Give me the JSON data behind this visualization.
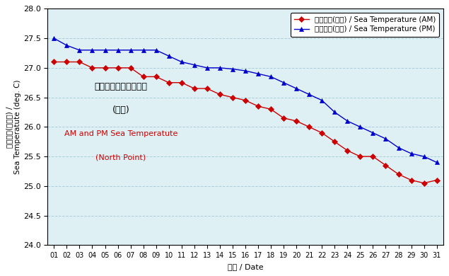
{
  "days": [
    1,
    2,
    3,
    4,
    5,
    6,
    7,
    8,
    9,
    10,
    11,
    12,
    13,
    14,
    15,
    16,
    17,
    18,
    19,
    20,
    21,
    22,
    23,
    24,
    25,
    26,
    27,
    28,
    29,
    30,
    31
  ],
  "am_temps": [
    27.1,
    27.1,
    27.1,
    27.0,
    27.0,
    27.0,
    27.0,
    26.85,
    26.85,
    26.75,
    26.75,
    26.65,
    26.65,
    26.55,
    26.5,
    26.45,
    26.35,
    26.3,
    26.15,
    26.1,
    26.0,
    25.9,
    25.75,
    25.6,
    25.5,
    25.5,
    25.35,
    25.2,
    25.1,
    25.05,
    25.1
  ],
  "pm_temps": [
    27.5,
    27.38,
    27.3,
    27.3,
    27.3,
    27.3,
    27.3,
    27.3,
    27.3,
    27.2,
    27.1,
    27.05,
    27.0,
    27.0,
    26.98,
    26.95,
    26.9,
    26.85,
    26.75,
    26.65,
    26.55,
    26.45,
    26.25,
    26.1,
    26.0,
    25.9,
    25.8,
    25.65,
    25.55,
    25.5,
    25.4
  ],
  "am_label_cn": "海水溫度(上午)",
  "am_label_en": " / Sea Temperature (AM)",
  "pm_label_cn": "海水溫度(下午)",
  "pm_label_en": " / Sea Temperature (PM)",
  "am_color": "#cc0000",
  "pm_color": "#0000cc",
  "xlabel_cn": "日期",
  "xlabel_en": " / Date",
  "ylabel_cn": "海水溫度(攝氏度) /",
  "ylabel_en": "Sea Temperatute (deg. C)",
  "ylim": [
    24.0,
    28.0
  ],
  "yticks": [
    24.0,
    24.5,
    25.0,
    25.5,
    26.0,
    26.5,
    27.0,
    27.5,
    28.0
  ],
  "annotation_cn1": "上午及下午的海水溫度",
  "annotation_cn2": "(北角)",
  "annotation_en1": "AM and PM Sea Temperatute",
  "annotation_en2": "(North Point)",
  "bg_color": "#dff0f5",
  "grid_color": "#aacfdc"
}
